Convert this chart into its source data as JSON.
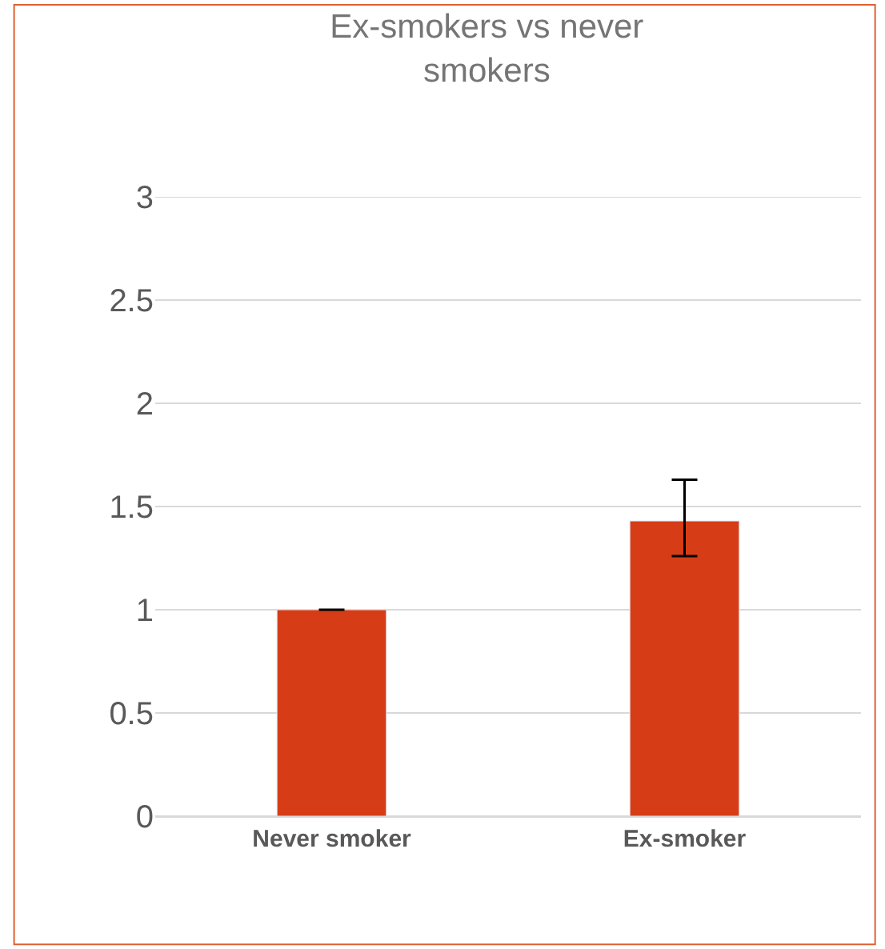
{
  "chart_data": {
    "type": "bar",
    "title": "Ex-smokers vs never smokers",
    "categories": [
      "Never smoker",
      "Ex-smoker"
    ],
    "values": [
      1,
      1.43
    ],
    "color": "#d63c16",
    "errors": [
      null,
      [
        1.26,
        1.63
      ]
    ],
    "ylim": [
      0,
      3
    ],
    "yticks": [
      0,
      0.5,
      1,
      1.5,
      2,
      2.5,
      3
    ],
    "grid": "y"
  }
}
